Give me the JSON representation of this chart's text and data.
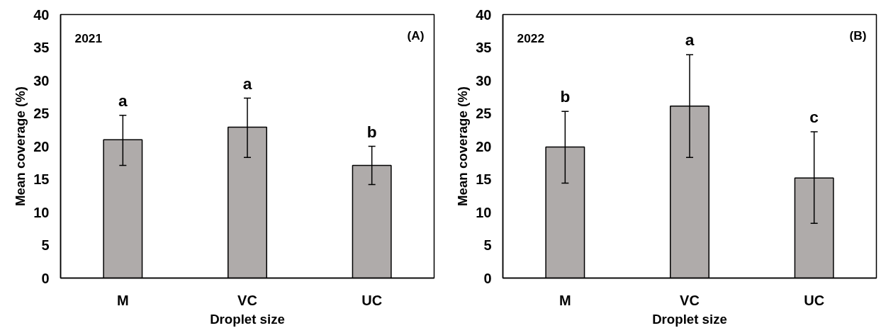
{
  "chart_data": [
    {
      "type": "bar",
      "xlabel": "Droplet size",
      "ylabel": "Mean coverage (%)",
      "categories": [
        "M",
        "VC",
        "UC"
      ],
      "color": "#afabaa",
      "values": [
        21.0,
        22.9,
        17.1
      ],
      "errors": [
        [
          17.1,
          24.7
        ],
        [
          18.3,
          27.3
        ],
        [
          14.2,
          20.0
        ]
      ],
      "ylim": [
        0,
        40
      ],
      "yticks": [
        0,
        5,
        10,
        15,
        20,
        25,
        30,
        35,
        40
      ],
      "grid": false,
      "annotations": [
        "2021",
        "(A)",
        {
          "text": "a",
          "x": "M",
          "y": 24.7
        },
        {
          "text": "a",
          "x": "VC",
          "y": 27.3
        },
        {
          "text": "b",
          "x": "UC",
          "y": 20.0
        }
      ]
    },
    {
      "type": "bar",
      "xlabel": "Droplet size",
      "ylabel": "Mean coverage (%)",
      "categories": [
        "M",
        "VC",
        "UC"
      ],
      "color": "#afabaa",
      "values": [
        19.9,
        26.1,
        15.2
      ],
      "errors": [
        [
          14.4,
          25.3
        ],
        [
          18.3,
          33.9
        ],
        [
          8.3,
          22.2
        ]
      ],
      "ylim": [
        0,
        40
      ],
      "yticks": [
        0,
        5,
        10,
        15,
        20,
        25,
        30,
        35,
        40
      ],
      "grid": false,
      "annotations": [
        "2022",
        "(B)",
        {
          "text": "b",
          "x": "M",
          "y": 25.3
        },
        {
          "text": "a",
          "x": "VC",
          "y": 33.9
        },
        {
          "text": "c",
          "x": "UC",
          "y": 22.2
        }
      ]
    }
  ]
}
